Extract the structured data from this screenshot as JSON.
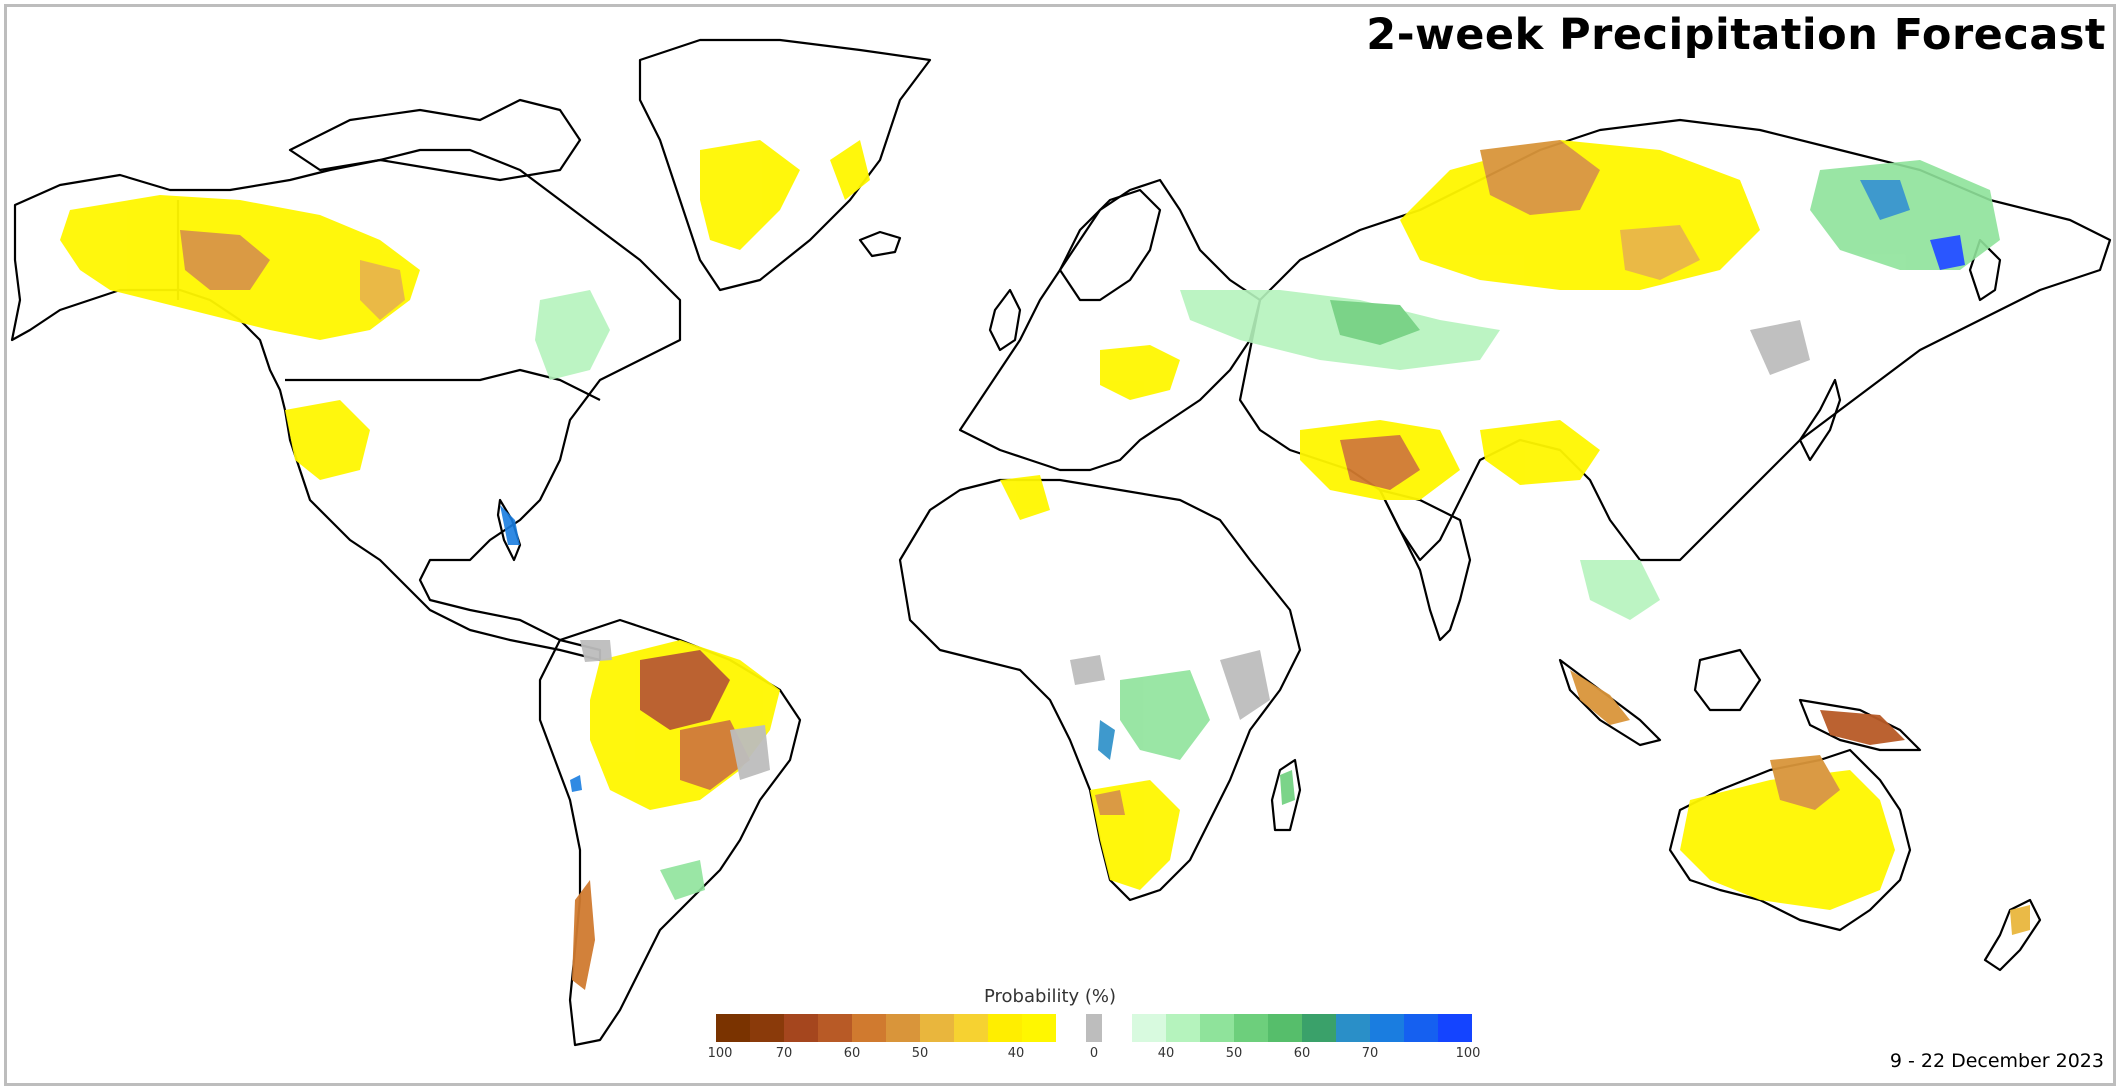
{
  "title": "2-week Precipitation Forecast",
  "date_range": "9 - 22 December 2023",
  "legend": {
    "title": "Probability (%)",
    "dry_colors": [
      "#7a3300",
      "#8a3a0a",
      "#a5461e",
      "#b85a26",
      "#d07a2f",
      "#d9953a",
      "#e9b63d",
      "#f6d231",
      "#ffee00",
      "#fff700"
    ],
    "neutral_color": "#bdbdbd",
    "wet_colors": [
      "#d8fadf",
      "#b5f3bd",
      "#8fe39b",
      "#6dcf7c",
      "#56be6b",
      "#3aa16a",
      "#2a8fc8",
      "#1a7de0",
      "#1560f0",
      "#1444ff"
    ],
    "dry_ticks": [
      "100",
      "70",
      "60",
      "50",
      "40"
    ],
    "neutral_tick": "0",
    "wet_ticks": [
      "40",
      "50",
      "60",
      "70",
      "100"
    ]
  }
}
